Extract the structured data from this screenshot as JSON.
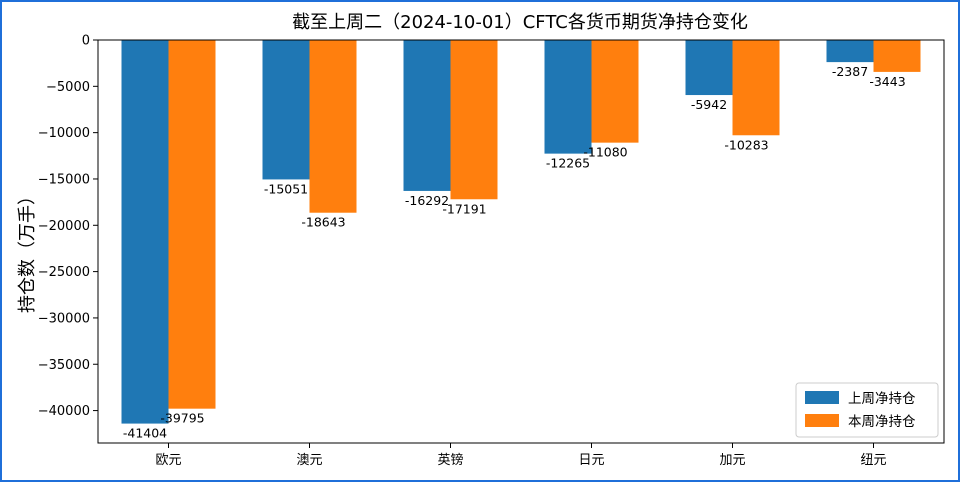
{
  "chart_data": {
    "type": "bar",
    "title": "截至上周二（2024-10-01）CFTC各货币期货净持仓变化",
    "xlabel": "",
    "ylabel": "持仓数（万手）",
    "categories": [
      "欧元",
      "澳元",
      "英镑",
      "日元",
      "加元",
      "纽元"
    ],
    "series": [
      {
        "name": "上周净持仓",
        "color": "#1f77b4",
        "values": [
          -41404,
          -15051,
          -16292,
          -12265,
          -5942,
          -2387
        ]
      },
      {
        "name": "本周净持仓",
        "color": "#ff7f0e",
        "values": [
          -39795,
          -18643,
          -17191,
          -11080,
          -10283,
          -3443
        ]
      }
    ],
    "ylim": [
      -43500,
      0
    ],
    "yticks": [
      0,
      -5000,
      -10000,
      -15000,
      -20000,
      -25000,
      -30000,
      -35000,
      -40000
    ],
    "ytick_labels": [
      "0",
      "−5000",
      "−10000",
      "−15000",
      "−20000",
      "−25000",
      "−30000",
      "−35000",
      "−40000"
    ],
    "grid": false,
    "legend_position": "lower-right"
  }
}
